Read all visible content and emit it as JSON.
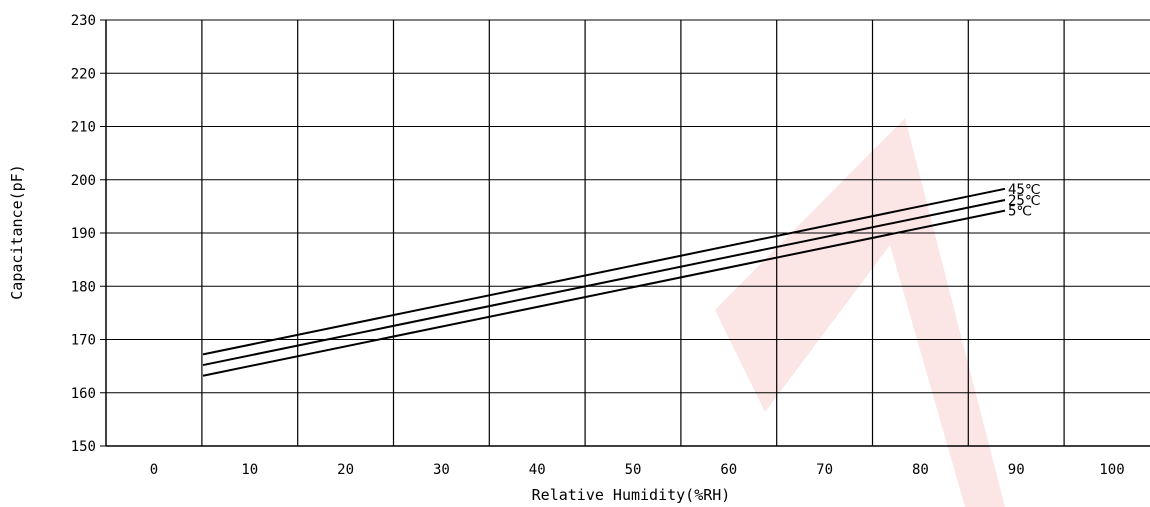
{
  "chart_data": {
    "type": "line",
    "xlabel": "Relative Humidity(%RH)",
    "ylabel": "Capacitance(pF)",
    "x_ticks": [
      "0",
      "10",
      "20",
      "30",
      "40",
      "50",
      "60",
      "70",
      "80",
      "90",
      "100"
    ],
    "y_ticks": [
      "150",
      "160",
      "170",
      "180",
      "190",
      "200",
      "210",
      "220",
      "230"
    ],
    "x_categories": [
      0,
      10,
      20,
      30,
      40,
      50,
      60,
      70,
      80,
      90,
      100
    ],
    "ylim": [
      150,
      230
    ],
    "grid": true,
    "series": [
      {
        "name": "45℃",
        "x": [
          10,
          90
        ],
        "values": [
          167.2,
          198.3
        ]
      },
      {
        "name": "25℃",
        "x": [
          10,
          90
        ],
        "values": [
          165.2,
          196.2
        ]
      },
      {
        "name": "5℃",
        "x": [
          10,
          90
        ],
        "values": [
          163.2,
          194.2
        ]
      }
    ],
    "watermark_color": "#f2c7c7"
  }
}
